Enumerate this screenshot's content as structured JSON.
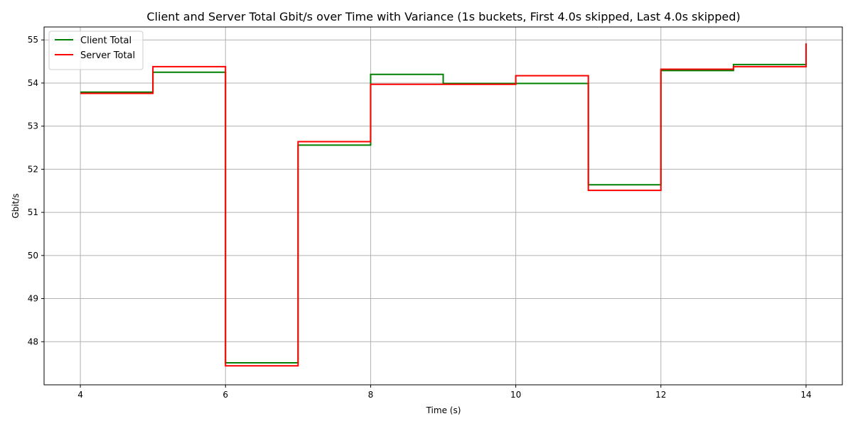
{
  "chart_data": {
    "type": "line",
    "step": "post",
    "title": "Client and Server Total Gbit/s over Time with Variance (1s buckets, First 4.0s skipped, Last 4.0s skipped)",
    "xlabel": "Time (s)",
    "ylabel": "Gbit/s",
    "xlim": [
      3.5,
      14.5
    ],
    "ylim": [
      47.0,
      55.3
    ],
    "xticks": [
      4,
      6,
      8,
      10,
      12,
      14
    ],
    "yticks": [
      48,
      49,
      50,
      51,
      52,
      53,
      54,
      55
    ],
    "grid": true,
    "legend_position": "top-left",
    "x": [
      4,
      5,
      6,
      7,
      8,
      9,
      10,
      11,
      12,
      13,
      14
    ],
    "series": [
      {
        "name": "Client Total",
        "color": "#008000",
        "values": [
          53.79,
          54.25,
          47.51,
          52.56,
          54.2,
          53.99,
          53.99,
          51.64,
          54.29,
          54.43,
          54.92
        ]
      },
      {
        "name": "Server Total",
        "color": "#ff0000",
        "values": [
          53.76,
          54.38,
          47.44,
          52.64,
          53.97,
          53.97,
          54.17,
          51.51,
          54.32,
          54.38,
          54.92
        ]
      }
    ]
  }
}
